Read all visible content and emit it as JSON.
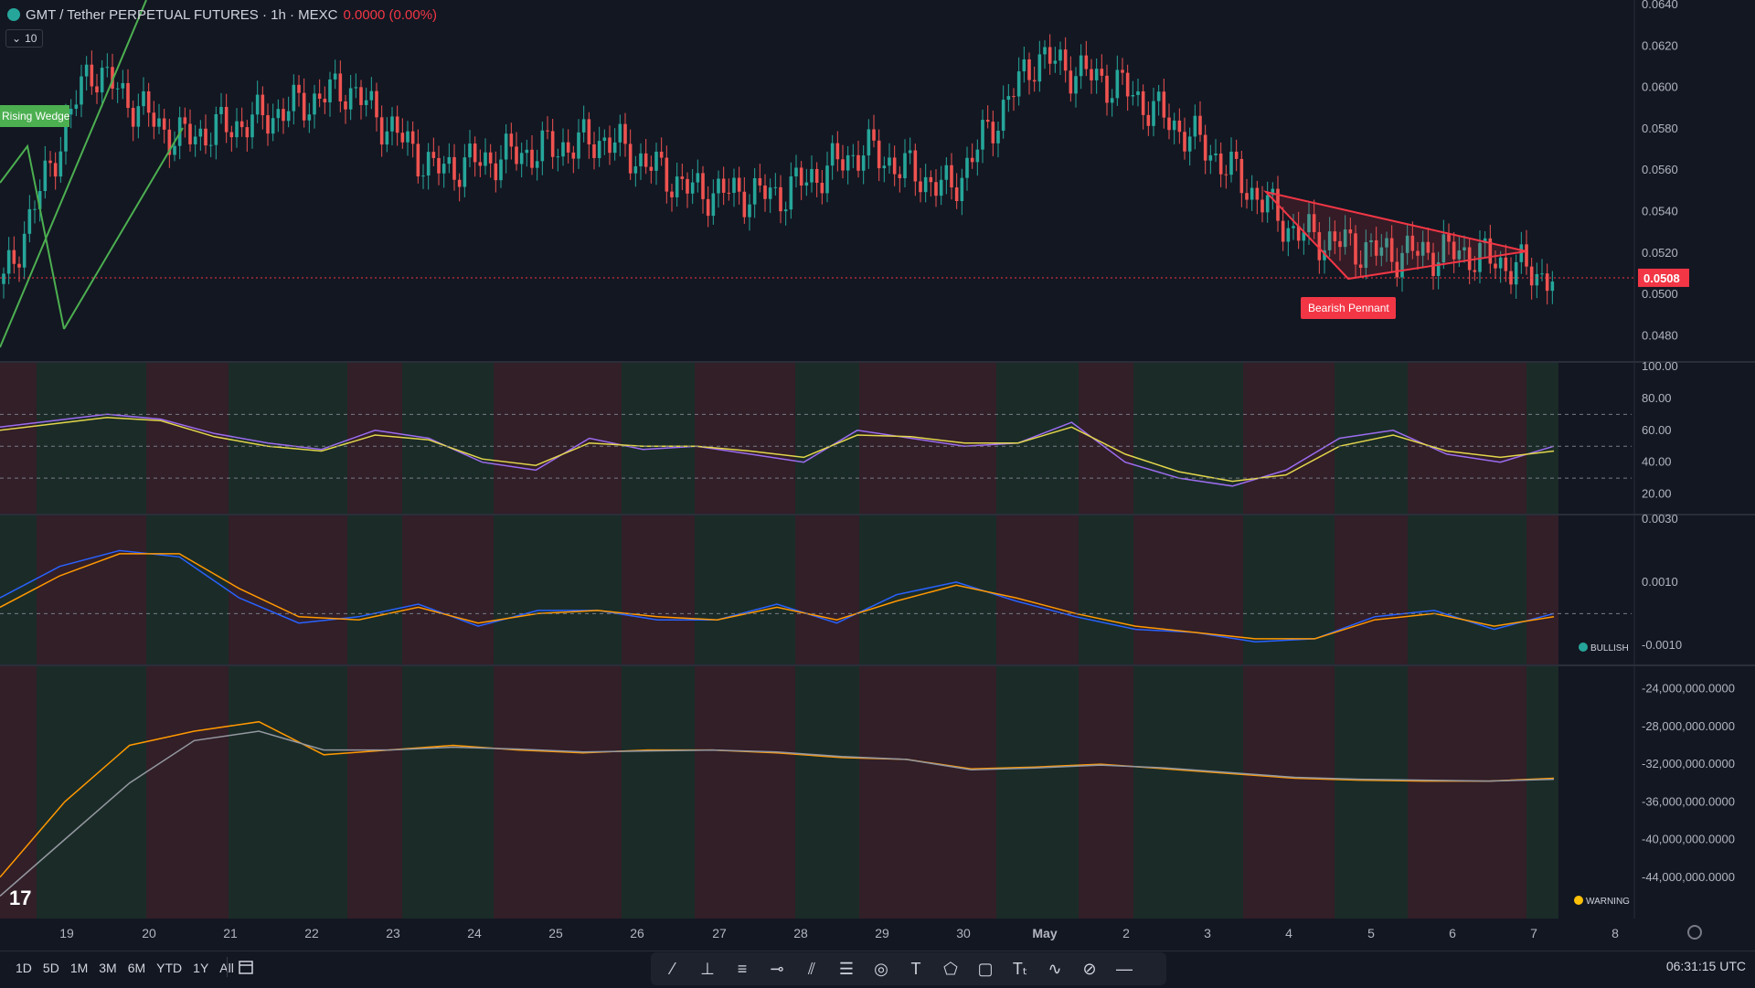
{
  "header": {
    "symbol": "GMT / Tether PERPETUAL FUTURES · 1h · MEXC",
    "change": "0.0000 (0.00%)",
    "volume_pill": "10"
  },
  "colors": {
    "background": "#131722",
    "up": "#26a69a",
    "down": "#ef5350",
    "pattern_red": "#f23645",
    "wedge_green": "#4caf50"
  },
  "chart_data": [
    {
      "type": "candlestick",
      "title": "GMT / Tether PERPETUAL FUTURES · 1h · MEXC",
      "x": [
        "19",
        "20",
        "21",
        "22",
        "23",
        "24",
        "25",
        "26",
        "27",
        "28",
        "29",
        "30",
        "May",
        "2",
        "3",
        "4",
        "5",
        "6",
        "7",
        "8"
      ],
      "close": [
        0.0505,
        0.061,
        0.0575,
        0.0585,
        0.06,
        0.056,
        0.0568,
        0.0575,
        0.055,
        0.0548,
        0.057,
        0.055,
        0.0615,
        0.06,
        0.057,
        0.053,
        0.052,
        0.052,
        0.0508,
        0.0508
      ],
      "y_ticks": [
        "0.0640",
        "0.0620",
        "0.0600",
        "0.0580",
        "0.0560",
        "0.0540",
        "0.0520",
        "0.0500",
        "0.0480"
      ],
      "ylim": [
        0.047,
        0.064
      ],
      "last_price": "0.0508",
      "annotations": [
        "Rising Wedge",
        "Bearish Pennant"
      ]
    },
    {
      "type": "line",
      "y_ticks": [
        "100.00",
        "80.00",
        "60.00",
        "40.00",
        "20.00"
      ],
      "ylim": [
        10,
        100
      ],
      "series": [
        {
          "values": [
            62,
            66,
            70,
            67,
            58,
            52,
            48,
            60,
            55,
            40,
            35,
            55,
            48,
            50,
            45,
            40,
            60,
            55,
            50,
            52,
            65,
            40,
            30,
            25,
            35,
            55,
            60,
            45,
            40,
            50
          ]
        },
        {
          "values": [
            60,
            64,
            68,
            66,
            56,
            50,
            47,
            57,
            54,
            42,
            38,
            52,
            50,
            50,
            47,
            43,
            57,
            56,
            52,
            52,
            62,
            45,
            34,
            28,
            32,
            50,
            57,
            47,
            43,
            47
          ]
        }
      ]
    },
    {
      "type": "line",
      "y_ticks": [
        "0.0030",
        "0.0010",
        "-0.0010"
      ],
      "ylim": [
        -0.0015,
        0.003
      ],
      "status": "BULLISH",
      "series": [
        {
          "values": [
            0.0005,
            0.0015,
            0.002,
            0.0018,
            0.0005,
            -0.0003,
            -0.0001,
            0.0003,
            -0.0004,
            0.0001,
            0.0001,
            -0.0002,
            -0.0002,
            0.0003,
            -0.0003,
            0.0006,
            0.001,
            0.0004,
            -0.0001,
            -0.0005,
            -0.0006,
            -0.0009,
            -0.0008,
            -0.0001,
            0.0001,
            -0.0005,
            0.0
          ]
        },
        {
          "values": [
            0.0002,
            0.0012,
            0.0019,
            0.0019,
            0.0008,
            -0.0001,
            -0.0002,
            0.0002,
            -0.0003,
            0.0,
            0.0001,
            -0.0001,
            -0.0002,
            0.0002,
            -0.0002,
            0.0004,
            0.0009,
            0.0005,
            0.0,
            -0.0004,
            -0.0006,
            -0.0008,
            -0.0008,
            -0.0002,
            0.0,
            -0.0004,
            -0.0001
          ]
        }
      ]
    },
    {
      "type": "line",
      "y_ticks": [
        "-24,000,000.0000",
        "-28,000,000.0000",
        "-32,000,000.0000",
        "-36,000,000.0000",
        "-40,000,000.0000",
        "-44,000,000.0000"
      ],
      "ylim": [
        -48000000,
        -22000000
      ],
      "status": "WARNING",
      "series": [
        {
          "values": [
            -44000000,
            -36000000,
            -30000000,
            -28500000,
            -27500000,
            -31000000,
            -30500000,
            -30000000,
            -30500000,
            -30800000,
            -30500000,
            -30500000,
            -30800000,
            -31300000,
            -31500000,
            -32500000,
            -32300000,
            -32000000,
            -32500000,
            -33000000,
            -33500000,
            -33700000,
            -33800000,
            -33800000,
            -33500000
          ]
        },
        {
          "values": [
            -46000000,
            -40000000,
            -34000000,
            -29500000,
            -28500000,
            -30500000,
            -30500000,
            -30200000,
            -30400000,
            -30700000,
            -30600000,
            -30500000,
            -30700000,
            -31200000,
            -31500000,
            -32600000,
            -32400000,
            -32100000,
            -32400000,
            -32900000,
            -33400000,
            -33600000,
            -33700000,
            -33800000,
            -33600000
          ]
        }
      ]
    }
  ],
  "bottom_bar": {
    "timeframes": [
      "1D",
      "5D",
      "1M",
      "3M",
      "6M",
      "YTD",
      "1Y",
      "All"
    ],
    "clock": "06:31:15 UTC"
  }
}
